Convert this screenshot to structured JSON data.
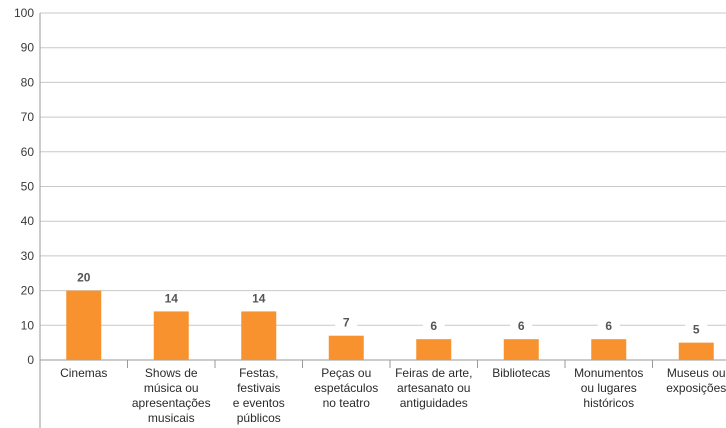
{
  "chart_data": {
    "type": "bar",
    "categories": [
      [
        "Cinemas"
      ],
      [
        "Shows de",
        "música ou",
        "apresentações",
        "musicais"
      ],
      [
        "Festas,",
        "festivais",
        "e eventos",
        "públicos"
      ],
      [
        "Peças ou",
        "espetáculos",
        "no teatro"
      ],
      [
        "Feiras de arte,",
        "artesanato ou",
        "antiguidades"
      ],
      [
        "Bibliotecas"
      ],
      [
        "Monumentos",
        "ou lugares",
        "históricos"
      ],
      [
        "Museus ou",
        "exposições"
      ]
    ],
    "values": [
      20,
      14,
      14,
      7,
      6,
      6,
      6,
      5
    ],
    "value_labels": [
      "20",
      "14",
      "14",
      "7",
      "6",
      "6",
      "6",
      "5"
    ],
    "y_ticks": [
      "0",
      "10",
      "20",
      "30",
      "40",
      "50",
      "60",
      "70",
      "80",
      "90",
      "100"
    ],
    "ylim": [
      0,
      100
    ],
    "title": "",
    "xlabel": "",
    "ylabel": "",
    "grid": true,
    "colors": {
      "bar": "#F7922F",
      "grid": "#c8c8c8",
      "axis": "#9a9a9a",
      "value_text": "#555555"
    }
  }
}
